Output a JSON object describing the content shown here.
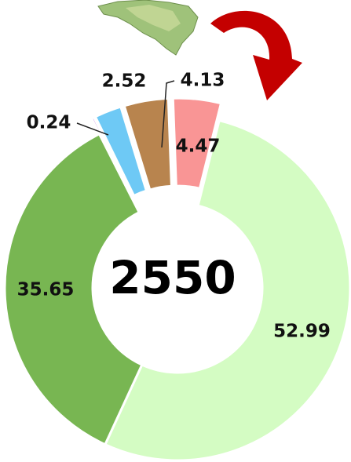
{
  "chart_data": {
    "type": "donut",
    "center_label": "2550",
    "values": [
      52.99,
      35.65,
      0.24,
      2.52,
      4.13,
      4.47
    ],
    "colors": [
      "#d4fcc3",
      "#78b652",
      "#b865e2",
      "#6ec9f5",
      "#b8844e",
      "#f99595"
    ]
  }
}
